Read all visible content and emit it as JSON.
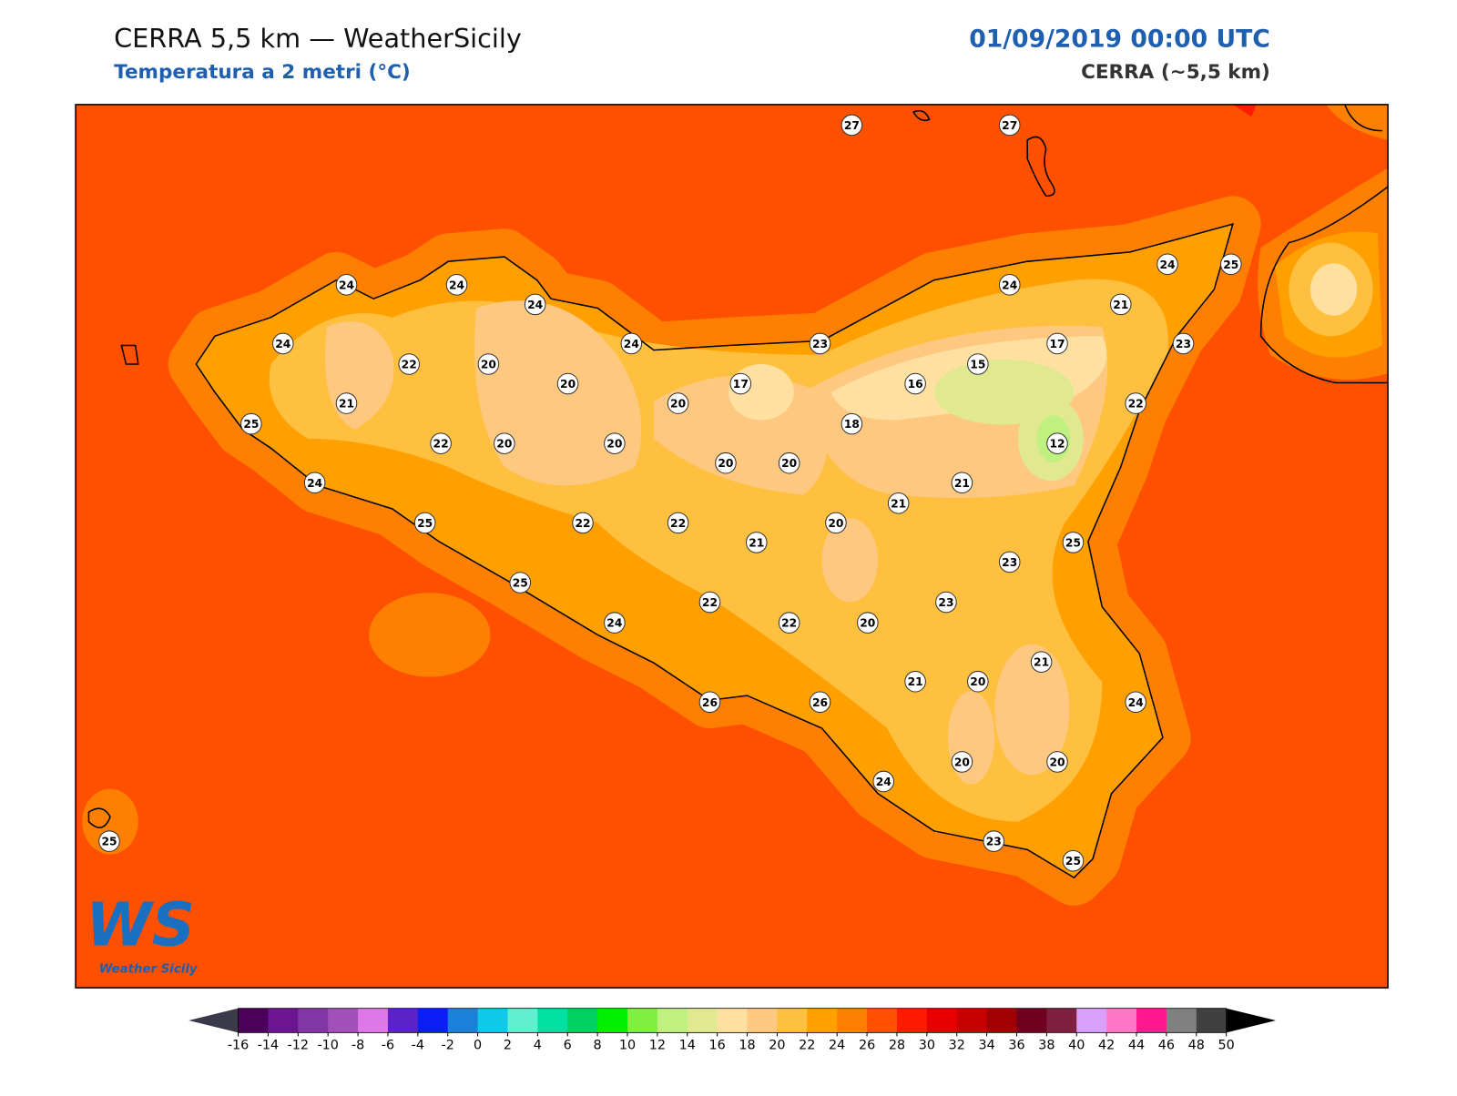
{
  "header": {
    "title": "CERRA 5,5 km — WeatherSicily",
    "subtitle": "Temperatura a 2 metri (°C)",
    "datetime": "01/09/2019 00:00 UTC",
    "source": "CERRA (~5,5 km)"
  },
  "logo": {
    "mark": "WS",
    "name": "Weather Sicily"
  },
  "stations": [
    27,
    27,
    24,
    24,
    24,
    24,
    22,
    20,
    20,
    24,
    23,
    21,
    25,
    22,
    20,
    20,
    20,
    17,
    18,
    16,
    15,
    17,
    24,
    21,
    24,
    25,
    23,
    22,
    12,
    21,
    21,
    20,
    20,
    24,
    25,
    22,
    22,
    21,
    20,
    25,
    23,
    23,
    25,
    24,
    22,
    22,
    20,
    21,
    21,
    20,
    24,
    26,
    26,
    24,
    20,
    20,
    23,
    25,
    25
  ],
  "colorbar": {
    "ticks": [
      -16,
      -14,
      -12,
      -10,
      -8,
      -6,
      -4,
      -2,
      0,
      2,
      4,
      6,
      8,
      10,
      12,
      14,
      16,
      18,
      20,
      22,
      24,
      26,
      28,
      30,
      32,
      34,
      36,
      38,
      40,
      42,
      44,
      46,
      48,
      50
    ],
    "colors": [
      "#4b0059",
      "#6b1590",
      "#8236a6",
      "#a050b8",
      "#de78e8",
      "#5a22c8",
      "#0a1ef5",
      "#1a80d8",
      "#10c8e8",
      "#60f0d0",
      "#00e0a0",
      "#00d060",
      "#00f000",
      "#80f040",
      "#c0f080",
      "#e0e890",
      "#ffe0a0",
      "#ffc880",
      "#ffc040",
      "#ffa000",
      "#ff8000",
      "#ff5000",
      "#ff1a00",
      "#e80000",
      "#c80000",
      "#a00000",
      "#700020",
      "#802040",
      "#d8a0f8",
      "#ff78c8",
      "#ff1890",
      "#808080",
      "#404040"
    ],
    "under": "#3a3a4a",
    "over": "#000000"
  }
}
